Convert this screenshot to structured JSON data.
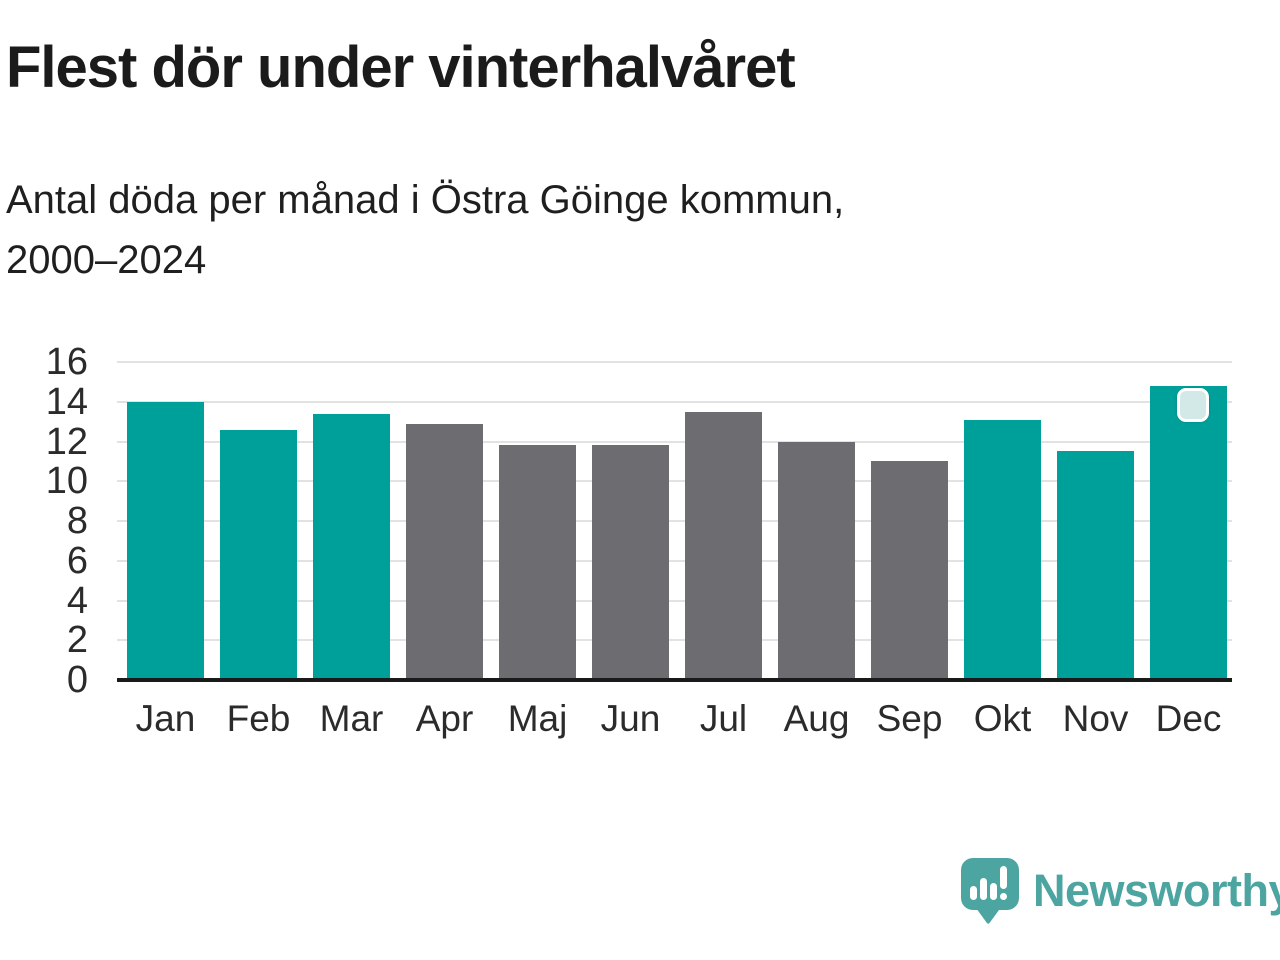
{
  "chart_data": {
    "type": "bar",
    "title": "Flest dör under vinterhalvåret",
    "subtitle": "Antal döda per månad i Östra Göinge kommun, 2000–2024",
    "subtitle_lines": [
      "Antal döda per månad i Östra Göinge kommun,",
      "2000–2024"
    ],
    "categories": [
      "Jan",
      "Feb",
      "Mar",
      "Apr",
      "Maj",
      "Jun",
      "Jul",
      "Aug",
      "Sep",
      "Okt",
      "Nov",
      "Dec"
    ],
    "values": [
      14.0,
      12.6,
      13.4,
      12.9,
      11.8,
      11.8,
      13.5,
      12.0,
      11.0,
      13.1,
      11.5,
      14.8
    ],
    "bar_color_keys": [
      "winter",
      "winter",
      "winter",
      "summer",
      "summer",
      "summer",
      "summer",
      "summer",
      "summer",
      "winter",
      "winter",
      "winter"
    ],
    "palette": {
      "winter": "#00A09A",
      "summer": "#6C6C71"
    },
    "xlabel": "",
    "ylabel": "",
    "ylim": [
      0,
      16
    ],
    "yticks": [
      0,
      2,
      4,
      6,
      8,
      10,
      12,
      14,
      16
    ],
    "grid": true,
    "legend_position": "none",
    "marker": {
      "category": "Dec",
      "fill": "#D3E9E7",
      "border": "#FFFFFF"
    }
  },
  "colors": {
    "background": "#FFFFFF",
    "axis": "#1A1A1A",
    "grid": "#E2E2E2",
    "title_text": "#1B1B1B",
    "tick_text": "#2B2B2B"
  },
  "footer": {
    "brand": "Newsworthy",
    "logo_color": "#4CA5A1"
  }
}
